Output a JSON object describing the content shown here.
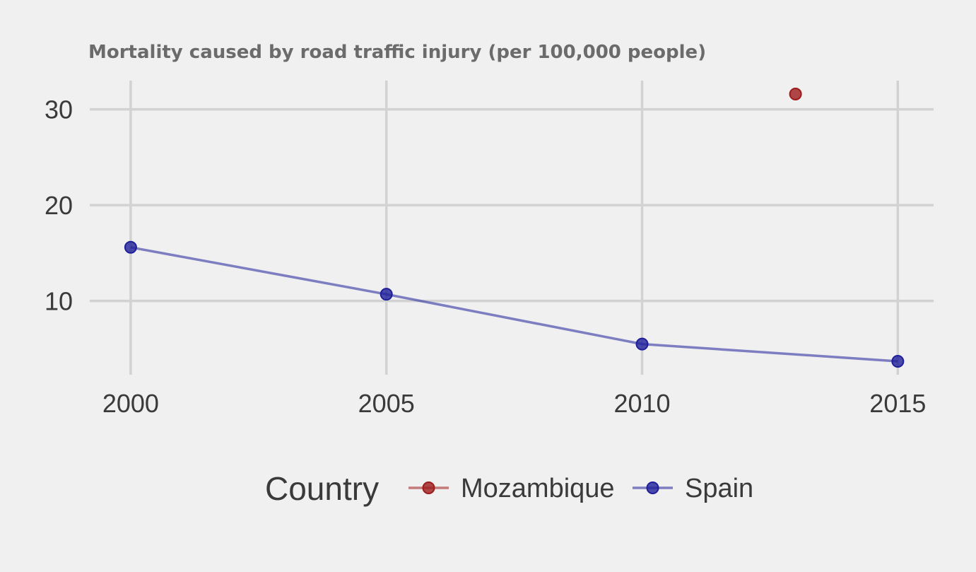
{
  "chart_data": {
    "type": "line",
    "title": "Mortality caused by road traffic injury (per 100,000 people)",
    "xlabel": "",
    "ylabel": "",
    "xlim": [
      1999.2,
      2015.7
    ],
    "ylim": [
      2.3,
      33.0
    ],
    "x_ticks": [
      "2000",
      "2005",
      "2010",
      "2015"
    ],
    "y_ticks": [
      "10",
      "20",
      "30"
    ],
    "grid": true,
    "legend": {
      "title": "Country",
      "position": "bottom"
    },
    "series": [
      {
        "name": "Mozambique",
        "color": "#9e1b1b",
        "points": [
          {
            "x": 2013,
            "y": 31.6
          }
        ]
      },
      {
        "name": "Spain",
        "color": "#1f1f9a",
        "points": [
          {
            "x": 2000,
            "y": 15.6
          },
          {
            "x": 2005,
            "y": 10.7
          },
          {
            "x": 2010,
            "y": 5.5
          },
          {
            "x": 2015,
            "y": 3.7
          }
        ]
      }
    ]
  }
}
